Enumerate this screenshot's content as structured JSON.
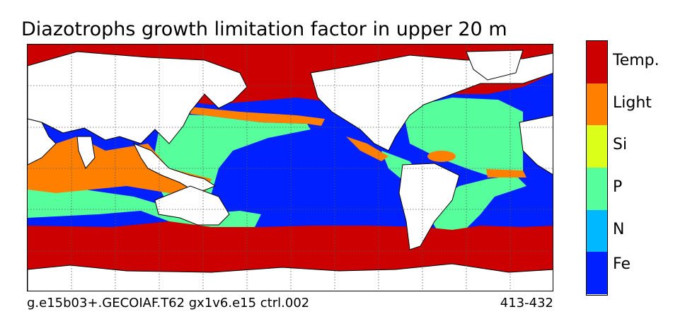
{
  "title": "Diazotrophs growth limitation factor in upper 20 m",
  "caption_left": "g.e15b03+.GECOIAF.T62 gx1v6.e15 ctrl.002",
  "caption_right": "413-432",
  "colorbar": {
    "categories": [
      {
        "label": "Temp.",
        "color": "#cc0000"
      },
      {
        "label": "Light",
        "color": "#ff8000"
      },
      {
        "label": "Si",
        "color": "#dcff1a"
      },
      {
        "label": "P",
        "color": "#57ff9c"
      },
      {
        "label": "N",
        "color": "#00b8ff"
      },
      {
        "label": "Fe",
        "color": "#0020ff"
      }
    ]
  },
  "colors": {
    "land": "#ffffff",
    "coast": "#000000",
    "grid": "#555555"
  },
  "map": {
    "projection": "cylindrical",
    "gridlines": "dotted"
  }
}
